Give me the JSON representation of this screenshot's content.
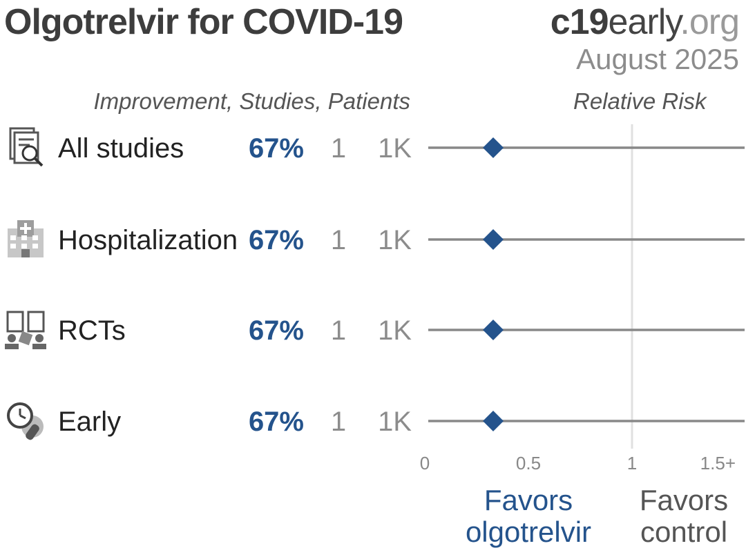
{
  "header": {
    "title": "Olgotrelvir for COVID-19",
    "brand_bold": "c19",
    "brand_mid": "early",
    "brand_light": ".org",
    "date": "August 2025"
  },
  "columns": {
    "left_header": "Improvement, Studies, Patients",
    "right_header": "Relative Risk"
  },
  "favors": {
    "left": [
      "Favors",
      "olgotrelvir"
    ],
    "right": [
      "Favors",
      "control"
    ]
  },
  "colors": {
    "accent": "#24538c",
    "line": "#888888",
    "refline": "#e0e0e0",
    "muted": "#8c8c8c"
  },
  "chart_data": {
    "type": "forest",
    "xlim": [
      0,
      1.5
    ],
    "xticks": [
      0,
      0.5,
      1,
      1.5
    ],
    "xtick_labels": [
      "0",
      "0.5",
      "1",
      "1.5+"
    ],
    "reference_line": 1,
    "rows": [
      {
        "label": "All studies",
        "icon": "studies-icon",
        "improvement": "67%",
        "studies": "1",
        "patients": "1K",
        "rr": 0.33,
        "ci": [
          0,
          1.5
        ]
      },
      {
        "label": "Hospitalization",
        "icon": "hospital-icon",
        "improvement": "67%",
        "studies": "1",
        "patients": "1K",
        "rr": 0.33,
        "ci": [
          0,
          1.5
        ]
      },
      {
        "label": "RCTs",
        "icon": "rct-icon",
        "improvement": "67%",
        "studies": "1",
        "patients": "1K",
        "rr": 0.33,
        "ci": [
          0,
          1.5
        ]
      },
      {
        "label": "Early",
        "icon": "early-treatment-icon",
        "improvement": "67%",
        "studies": "1",
        "patients": "1K",
        "rr": 0.33,
        "ci": [
          0,
          1.5
        ]
      }
    ]
  }
}
